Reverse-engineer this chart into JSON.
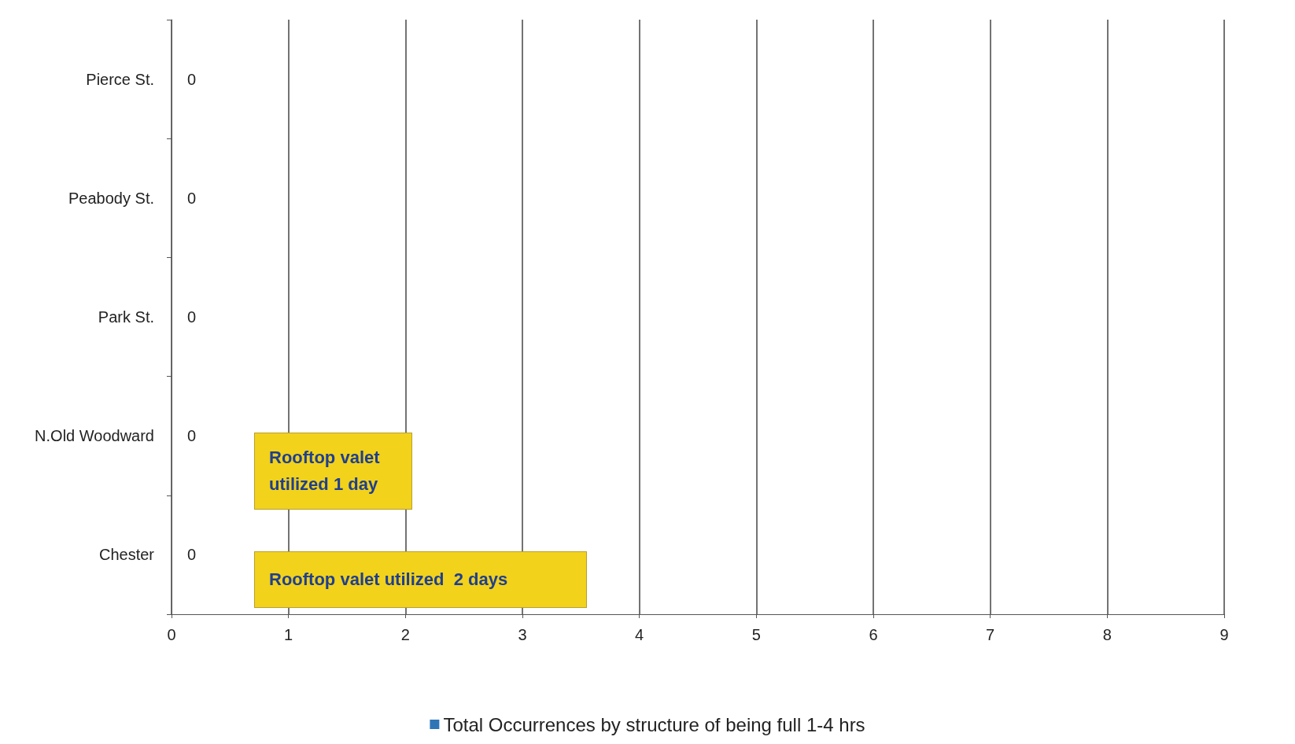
{
  "chart_data": {
    "type": "bar",
    "orientation": "horizontal",
    "categories": [
      "Pierce St.",
      "Peabody St.",
      "Park St.",
      "N.Old Woodward",
      "Chester"
    ],
    "series": [
      {
        "name": "Total Occurrences by structure of being full 1-4 hrs",
        "color": "#2e75b6",
        "values": [
          0,
          0,
          0,
          0,
          0
        ]
      }
    ],
    "xlim": [
      0,
      9
    ],
    "xticks": [
      0,
      1,
      2,
      3,
      4,
      5,
      6,
      7,
      8,
      9
    ],
    "grid": "x",
    "data_labels": true,
    "legend": "bottom",
    "annotations": [
      "Rooftop valet\nutilized 1 day",
      "Rooftop valet utilized  2 days"
    ]
  }
}
